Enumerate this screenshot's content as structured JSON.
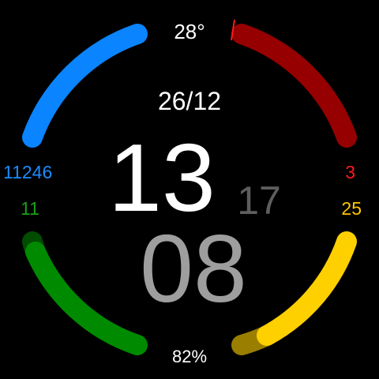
{
  "weather": {
    "temperature": "28°"
  },
  "date": "26/12",
  "time": {
    "hour": "13",
    "minute": "08",
    "second": "17"
  },
  "battery": {
    "percent_label": "82%",
    "level": 0.82
  },
  "complications": {
    "steps": "11246",
    "left_lower_value": "11",
    "right_upper_value": "3",
    "right_lower_value": "25"
  },
  "colors": {
    "background": "#000000",
    "text_primary": "#ffffff",
    "minute": "#9e9e9e",
    "second": "#5e5e5e",
    "steps_arc": "#0a84ff",
    "steps_text": "#1a8cff",
    "red_arc": "#960000",
    "red_text": "#ff1a1a",
    "green_arc": "#008a00",
    "green_arc_dim": "#004d00",
    "green_text": "#19a019",
    "yellow_arc": "#ffd000",
    "yellow_arc_dim": "#9a7e00",
    "yellow_text": "#ffc800"
  }
}
